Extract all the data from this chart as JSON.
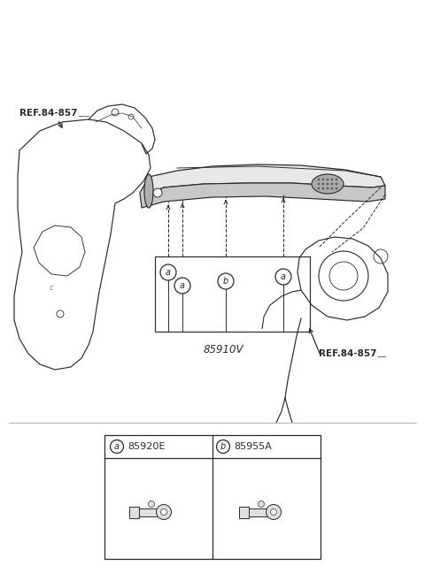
{
  "background_color": "#ffffff",
  "line_color": "#2a2a2a",
  "gray_fill": "#c8c8c8",
  "light_gray": "#e8e8e8",
  "speaker_gray": "#aaaaaa",
  "diagram_label": "85910V",
  "ref_label_1": "REF.84-857",
  "ref_label_2": "REF.84-857",
  "part_a_label": "85920E",
  "part_b_label": "85955A",
  "fig_width": 4.8,
  "fig_height": 6.57,
  "dpi": 100
}
